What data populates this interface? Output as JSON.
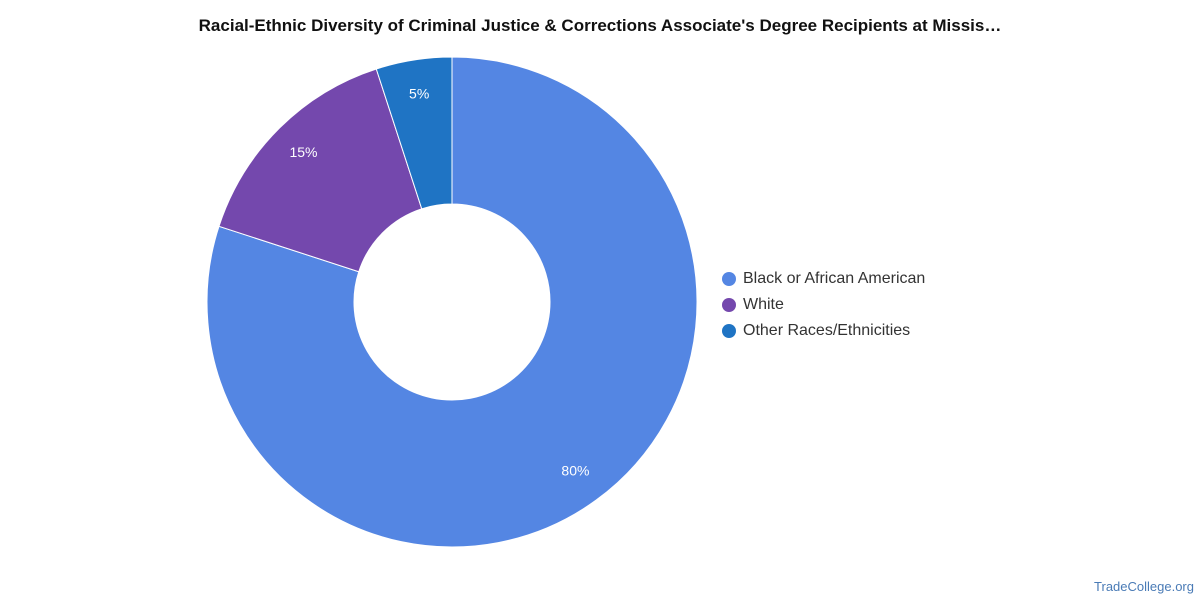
{
  "chart_data": {
    "type": "pie",
    "donut": true,
    "title": "Racial-Ethnic Diversity of Criminal Justice & Corrections Associate's Degree Recipients at Missis…",
    "categories": [
      "Black or African American",
      "White",
      "Other Races/Ethnicities"
    ],
    "values": [
      80,
      15,
      5
    ],
    "value_labels": [
      "80%",
      "15%",
      "5%"
    ],
    "colors": [
      "#5486e3",
      "#7448ad",
      "#1f74c4"
    ],
    "legend_position": "right"
  },
  "watermark": "TradeCollege.org"
}
